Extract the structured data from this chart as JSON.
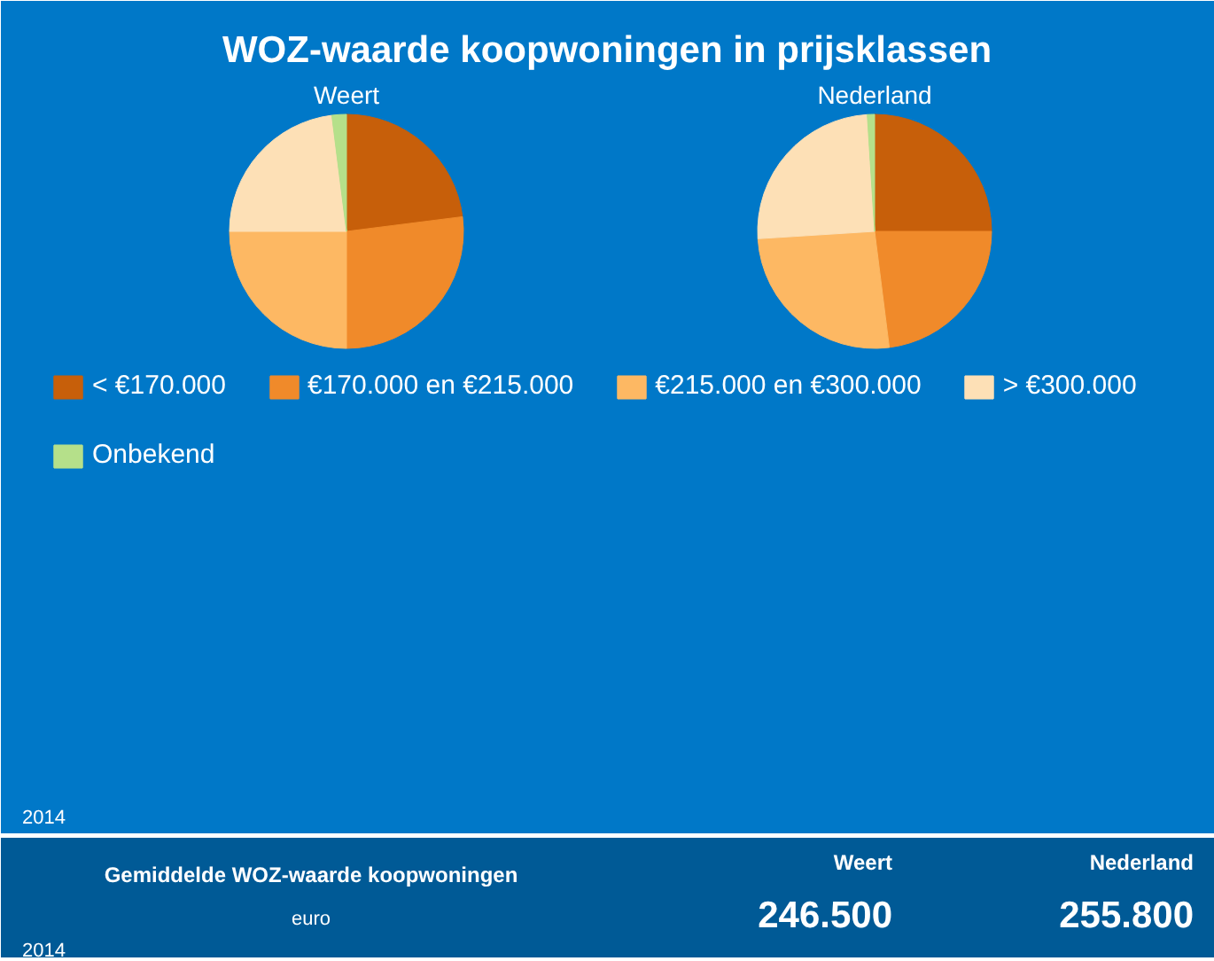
{
  "chart_data": [
    {
      "type": "pie",
      "title": "WOZ-waarde koopwoningen in prijsklassen",
      "categories": [
        "< €170.000",
        "€170.000 en €215.000",
        "€215.000 en €300.000",
        "> €300.000",
        "Onbekend"
      ],
      "colors": [
        "#c75f0a",
        "#f08a2a",
        "#fdb863",
        "#fde0b6",
        "#b5e08a"
      ],
      "legend": "bottom",
      "annotations": [
        "2014"
      ],
      "series": [
        {
          "name": "Weert",
          "values": [
            23,
            27,
            25,
            23,
            2
          ]
        },
        {
          "name": "Nederland",
          "values": [
            25,
            23,
            26,
            25,
            1
          ]
        }
      ]
    },
    {
      "type": "other",
      "title": "Gemiddelde WOZ-waarde koopwoningen",
      "subtitle": "euro",
      "categories": [
        "Weert",
        "Nederland"
      ],
      "value_labels": [
        "246.500",
        "255.800"
      ],
      "annotations": [
        "2014"
      ]
    }
  ]
}
